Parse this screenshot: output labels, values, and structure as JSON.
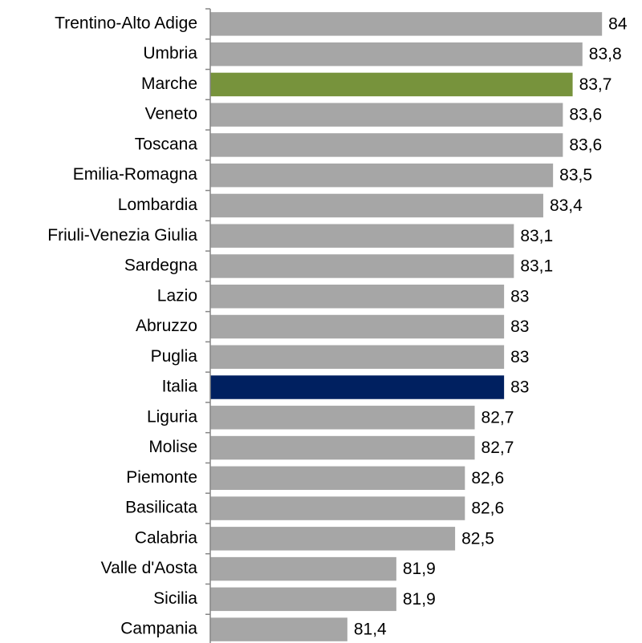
{
  "chart_data": {
    "type": "bar",
    "orientation": "horizontal",
    "categories": [
      "Trentino-Alto Adige",
      "Umbria",
      "Marche",
      "Veneto",
      "Toscana",
      "Emilia-Romagna",
      "Lombardia",
      "Friuli-Venezia Giulia",
      "Sardegna",
      "Lazio",
      "Abruzzo",
      "Puglia",
      "Italia",
      "Liguria",
      "Molise",
      "Piemonte",
      "Basilicata",
      "Calabria",
      "Valle d'Aosta",
      "Sicilia",
      "Campania"
    ],
    "values": [
      84,
      83.8,
      83.7,
      83.6,
      83.6,
      83.5,
      83.4,
      83.1,
      83.1,
      83,
      83,
      83,
      83,
      82.7,
      82.7,
      82.6,
      82.6,
      82.5,
      81.9,
      81.9,
      81.4
    ],
    "value_labels": [
      "84",
      "83,8",
      "83,7",
      "83,6",
      "83,6",
      "83,5",
      "83,4",
      "83,1",
      "83,1",
      "83",
      "83",
      "83",
      "83",
      "82,7",
      "82,7",
      "82,6",
      "82,6",
      "82,5",
      "81,9",
      "81,9",
      "81,4"
    ],
    "colors": [
      "#a6a6a6",
      "#a6a6a6",
      "#77933c",
      "#a6a6a6",
      "#a6a6a6",
      "#a6a6a6",
      "#a6a6a6",
      "#a6a6a6",
      "#a6a6a6",
      "#a6a6a6",
      "#a6a6a6",
      "#a6a6a6",
      "#002060",
      "#a6a6a6",
      "#a6a6a6",
      "#a6a6a6",
      "#a6a6a6",
      "#a6a6a6",
      "#a6a6a6",
      "#a6a6a6",
      "#a6a6a6"
    ],
    "xlim": [
      80,
      84.4
    ]
  }
}
